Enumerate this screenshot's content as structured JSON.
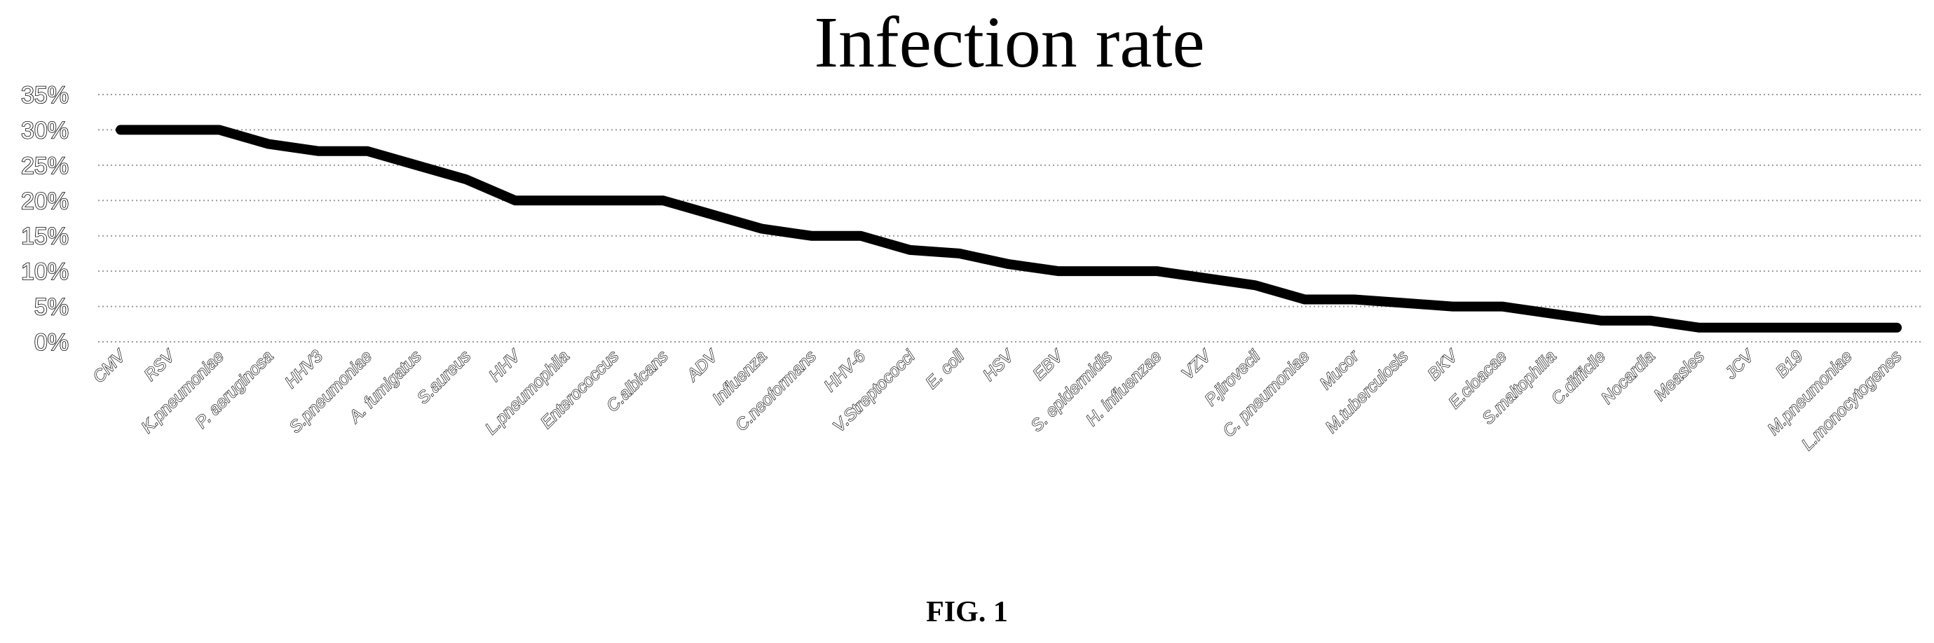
{
  "figure_label": "FIG. 1",
  "chart_data": {
    "type": "line",
    "title": "Infection rate",
    "xlabel": "",
    "ylabel": "",
    "ylim": [
      0,
      35
    ],
    "yticks": [
      "0%",
      "5%",
      "10%",
      "15%",
      "20%",
      "25%",
      "30%",
      "35%"
    ],
    "grid": true,
    "series_color": "#000000",
    "categories": [
      "CMV",
      "RSV",
      "K.pneumoniae",
      "P. aeruginosa",
      "HHV3",
      "S.pneumoniae",
      "A. fumigatus",
      "S.aureus",
      "HHV",
      "L.pneumophila",
      "Enterococcus",
      "C.albicans",
      "ADV",
      "Influenza",
      "C.neoformans",
      "HHV-6",
      "V.Streptococci",
      "E. coli",
      "HSV",
      "EBV",
      "S. epidermidis",
      "H. influenzae",
      "VZV",
      "P.jirovecii",
      "C. pneumoniae",
      "Mucor",
      "M.tuberculosis",
      "BKV",
      "E.cloacae",
      "S.maltophilia",
      "C.difficile",
      "Nocardia",
      "Measles",
      "JCV",
      "B19",
      "M.pneumoniae",
      "L.monocytogenes"
    ],
    "values": [
      30,
      30,
      30,
      28,
      27,
      27,
      25,
      23,
      20,
      20,
      20,
      20,
      18,
      16,
      15,
      15,
      13,
      12.5,
      11,
      10,
      10,
      10,
      9,
      8,
      6,
      6,
      5.5,
      5,
      5,
      4,
      3,
      3,
      2,
      2,
      2,
      2,
      2
    ]
  }
}
